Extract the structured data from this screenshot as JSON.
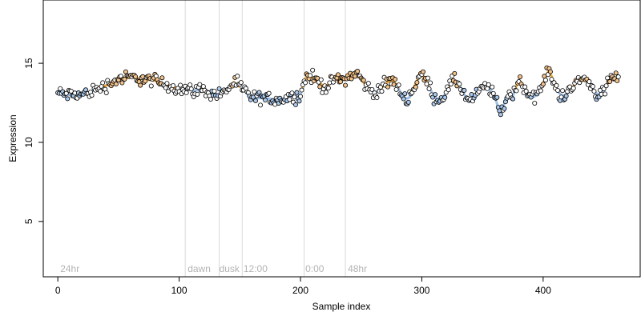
{
  "chart_data": {
    "type": "scatter",
    "title": "",
    "xlabel": "Sample index",
    "ylabel": "Expression",
    "xlim": [
      -12,
      480
    ],
    "ylim": [
      1.5,
      19
    ],
    "x_ticks": [
      0,
      100,
      200,
      300,
      400
    ],
    "y_ticks": [
      5,
      10,
      15
    ],
    "grid": false,
    "legend": "none",
    "colors": {
      "point_edge": "#000000",
      "point_warm": "#f2c28a",
      "point_cool": "#a9c8ec",
      "point_neutral": "#ffffff",
      "smooth_line_low": "#9bbde6",
      "smooth_line_high": "#e8a43c",
      "segment_line": "#d9d9d9",
      "annotation_text": "#b3b3b3"
    },
    "segment_lines": [
      105,
      133,
      152,
      203,
      237
    ],
    "annotations": [
      {
        "x": 2,
        "y": 2.0,
        "text": "24hr"
      },
      {
        "x": 107,
        "y": 2.0,
        "text": "dawn"
      },
      {
        "x": 133,
        "y": 2.0,
        "text": "dusk"
      },
      {
        "x": 153,
        "y": 2.0,
        "text": "12:00"
      },
      {
        "x": 204,
        "y": 2.0,
        "text": "0:00"
      },
      {
        "x": 239,
        "y": 2.0,
        "text": "48hr"
      }
    ],
    "trend_knots": [
      [
        0,
        13.1
      ],
      [
        10,
        13.0
      ],
      [
        20,
        13.0
      ],
      [
        30,
        13.3
      ],
      [
        40,
        13.6
      ],
      [
        50,
        14.0
      ],
      [
        60,
        14.1
      ],
      [
        70,
        14.0
      ],
      [
        80,
        13.9
      ],
      [
        90,
        13.6
      ],
      [
        100,
        13.4
      ],
      [
        110,
        13.3
      ],
      [
        120,
        13.3
      ],
      [
        130,
        13.0
      ],
      [
        138,
        13.2
      ],
      [
        145,
        13.8
      ],
      [
        152,
        13.4
      ],
      [
        160,
        12.8
      ],
      [
        170,
        12.8
      ],
      [
        180,
        12.7
      ],
      [
        190,
        12.8
      ],
      [
        200,
        13.0
      ],
      [
        205,
        14.2
      ],
      [
        210,
        14.1
      ],
      [
        220,
        13.5
      ],
      [
        230,
        14.0
      ],
      [
        240,
        14.1
      ],
      [
        250,
        13.6
      ],
      [
        260,
        13.8
      ],
      [
        270,
        13.2
      ],
      [
        280,
        13.6
      ],
      [
        290,
        13.2
      ],
      [
        300,
        13.7
      ],
      [
        310,
        13.4
      ],
      [
        320,
        13.0
      ],
      [
        330,
        13.5
      ],
      [
        340,
        13.2
      ],
      [
        350,
        12.9
      ],
      [
        360,
        13.1
      ],
      [
        365,
        12.4
      ],
      [
        370,
        13.2
      ],
      [
        375,
        12.5
      ],
      [
        380,
        13.4
      ],
      [
        390,
        13.4
      ],
      [
        400,
        13.5
      ],
      [
        405,
        14.0
      ],
      [
        410,
        13.2
      ],
      [
        420,
        13.6
      ],
      [
        430,
        13.4
      ],
      [
        440,
        13.8
      ],
      [
        450,
        13.4
      ],
      [
        460,
        13.6
      ]
    ],
    "n_points": 463,
    "noise_amplitude": 0.45,
    "oscillation_start": 240,
    "oscillation_amplitude": 0.55
  }
}
